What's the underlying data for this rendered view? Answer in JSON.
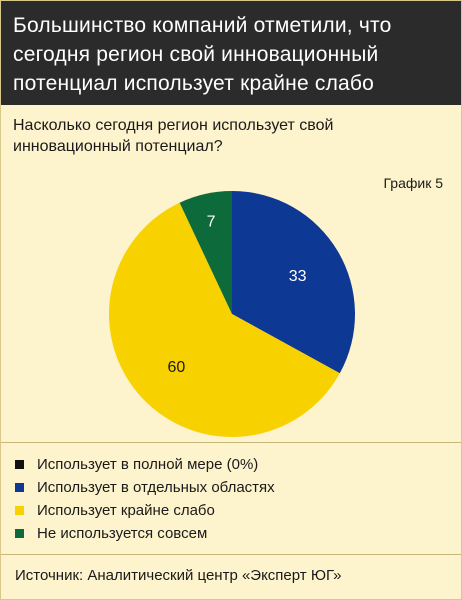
{
  "header": {
    "title": "Большинство компаний отметили, что сегодня регион свой инновационный потенциал использует крайне слабо"
  },
  "subtitle": "Насколько сегодня регион использует свой инновационный потенциал?",
  "chart_label": "График 5",
  "chart_data": {
    "type": "pie",
    "title": "Насколько сегодня регион использует свой инновационный потенциал?",
    "categories": [
      "Использует в полной мере (0%)",
      "Использует в отдельных областях",
      "Использует крайне слабо",
      "Не используется совсем"
    ],
    "values": [
      0,
      33,
      60,
      7
    ],
    "colors": [
      "#111111",
      "#0d3893",
      "#f7d200",
      "#0d6a3a"
    ],
    "data_labels": [
      "",
      "33",
      "60",
      "7"
    ],
    "label_colors": [
      "#ffffff",
      "#ffffff",
      "#1a1a1a",
      "#ffffff"
    ],
    "legend_placement": "bottom"
  },
  "source": "Источник: Аналитический центр «Эксперт ЮГ»"
}
